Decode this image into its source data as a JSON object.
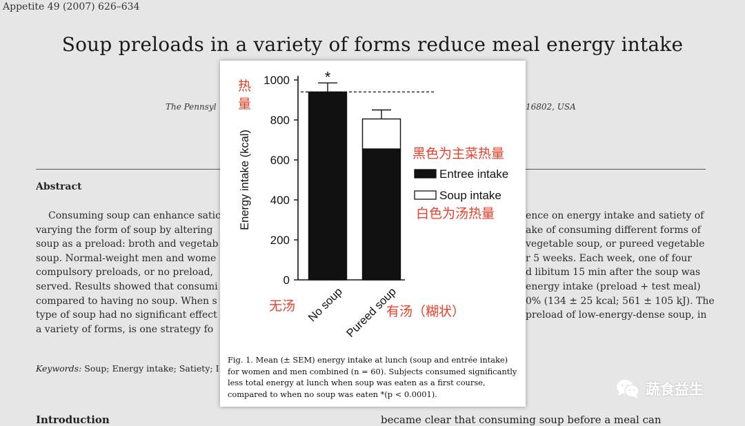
{
  "journal_ref": "Appetite 49 (2007) 626–634",
  "paper_title": "Soup preloads in a variety of forms reduce meal energy intake",
  "affiliation": {
    "left": "The Pennsyl",
    "right": "16802, USA"
  },
  "abstract_heading": "Abstract",
  "abstract_left": [
    "Consuming soup can enhance satic",
    "varying the form of soup by altering",
    "soup as a preload: broth and vegetab",
    "soup. Normal-weight men and wome",
    "compulsory preloads, or no preload,",
    "served. Results showed that consumi",
    "compared to having no soup. When s",
    "type of soup had no significant effect",
    "a variety of forms, is one strategy fo"
  ],
  "abstract_right": [
    "ence on energy intake and satiety of",
    "ake of consuming different forms of",
    "vegetable soup, or pureed vegetable",
    "r 5 weeks. Each week, one of four",
    "d libitum 15 min after the soup was",
    "energy intake (preload + test meal)",
    "0% (134 ± 25 kcal; 561 ± 105 kJ). The",
    "preload of low-energy-dense soup, in",
    ""
  ],
  "keywords": {
    "label": "Keywords:",
    "text": " Soup; Energy intake; Satiety; I"
  },
  "intro_cut": "Introduction",
  "right_cut": "became clear that consuming soup before a meal can",
  "chart_data": {
    "type": "bar",
    "stacked": true,
    "categories": [
      "No soup",
      "Pureed soup"
    ],
    "series": [
      {
        "name": "Entree intake",
        "values": [
          940,
          655
        ],
        "color": "#111111"
      },
      {
        "name": "Soup intake",
        "values": [
          0,
          150
        ],
        "color": "#ffffff"
      }
    ],
    "error_bars_upper": [
      985,
      850
    ],
    "significance_marker": "*",
    "reference_line": 940,
    "ylabel": "Energy intake (kcal)",
    "ylim": [
      0,
      1000
    ],
    "yticks": [
      0,
      200,
      400,
      600,
      800,
      1000
    ],
    "legend_placement": "right"
  },
  "caption": "Fig. 1.  Mean (± SEM) energy intake at lunch (soup and entrée intake) for women and men combined (n = 60). Subjects consumed significantly less total energy at lunch when soup was eaten as a first course, compared to when no soup was eaten *(p < 0.0001).",
  "annotations": {
    "calories_label": "热量",
    "black_note": "黑色为主菜热量",
    "white_note": "白色为汤热量",
    "no_soup_note": "无汤",
    "with_soup_note": "有汤（糊状）"
  },
  "watermark": {
    "text": "蔬食益生",
    "icon": "wechat-icon"
  },
  "colors": {
    "annotation": "#e8402b",
    "bar": "#111111",
    "background": "#e6e6e6"
  }
}
